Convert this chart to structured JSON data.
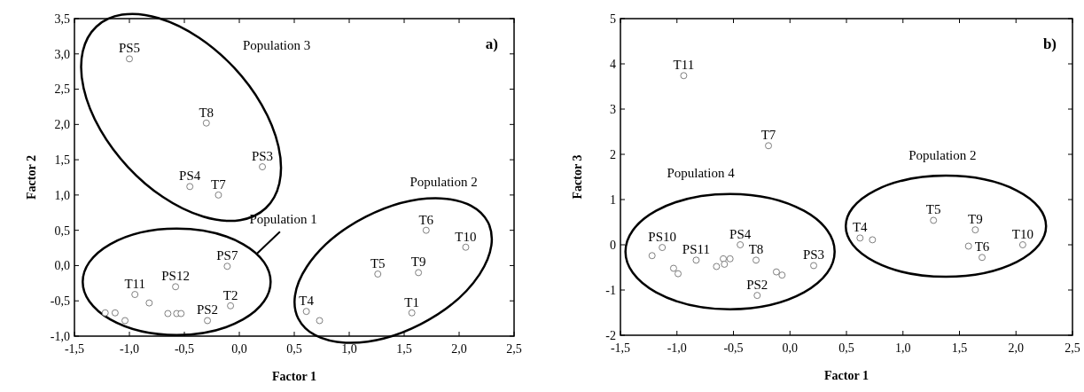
{
  "chart_data": [
    {
      "type": "scatter",
      "title": "a)",
      "xlabel": "Factor 1",
      "ylabel": "Factor 2",
      "marker": "circle",
      "grid": false,
      "xlim": [
        -1.5,
        2.5
      ],
      "ylim": [
        -1.0,
        3.5
      ],
      "xticks": [
        {
          "value": -1.5,
          "label": "-1,5"
        },
        {
          "value": -1.0,
          "label": "-1,0"
        },
        {
          "value": -0.5,
          "label": "-0,5"
        },
        {
          "value": 0,
          "label": "0,0"
        },
        {
          "value": 0.5,
          "label": "0,5"
        },
        {
          "value": 1.0,
          "label": "1,0"
        },
        {
          "value": 1.5,
          "label": "1,5"
        },
        {
          "value": 2.0,
          "label": "2,0"
        },
        {
          "value": 2.5,
          "label": "2,5"
        }
      ],
      "yticks": [
        {
          "value": -1.0,
          "label": "-1,0"
        },
        {
          "value": -0.5,
          "label": "-0,5"
        },
        {
          "value": 0,
          "label": "0,0"
        },
        {
          "value": 0.5,
          "label": "0,5"
        },
        {
          "value": 1.0,
          "label": "1,0"
        },
        {
          "value": 1.5,
          "label": "1,5"
        },
        {
          "value": 2.0,
          "label": "2,0"
        },
        {
          "value": 2.5,
          "label": "2,5"
        },
        {
          "value": 3.0,
          "label": "3,0"
        },
        {
          "value": 3.5,
          "label": "3,5"
        }
      ],
      "series": [
        {
          "color": "#7f7f7f",
          "x": [
            -1.0,
            -0.3,
            0.21,
            -0.45,
            -0.19,
            -0.95,
            -0.82,
            -1.22,
            -1.13,
            -1.04,
            -0.58,
            -0.65,
            -0.57,
            -0.53,
            -0.29,
            -0.11,
            -0.08,
            0.61,
            0.73,
            1.26,
            1.63,
            1.57,
            1.7,
            2.06
          ],
          "values": [
            2.93,
            2.02,
            1.4,
            1.12,
            1.0,
            -0.41,
            -0.53,
            -0.67,
            -0.67,
            -0.78,
            -0.3,
            -0.68,
            -0.68,
            -0.68,
            -0.78,
            -0.01,
            -0.57,
            -0.65,
            -0.78,
            -0.12,
            -0.1,
            -0.67,
            0.5,
            0.26
          ]
        }
      ],
      "annotations": [
        "Population 3",
        "Population 1",
        "Population 2",
        {
          "text": "PS5",
          "x": -1.0,
          "y": 2.93
        },
        {
          "text": "T8",
          "x": -0.3,
          "y": 2.02
        },
        {
          "text": "PS3",
          "x": 0.21,
          "y": 1.4
        },
        {
          "text": "PS4",
          "x": -0.45,
          "y": 1.12
        },
        {
          "text": "T7",
          "x": -0.19,
          "y": 1.0
        },
        {
          "text": "T11",
          "x": -0.95,
          "y": -0.41
        },
        {
          "text": "PS12",
          "x": -0.58,
          "y": -0.3
        },
        {
          "text": "PS2",
          "x": -0.29,
          "y": -0.78
        },
        {
          "text": "PS7",
          "x": -0.11,
          "y": -0.01
        },
        {
          "text": "T2",
          "x": -0.08,
          "y": -0.57
        },
        {
          "text": "T4",
          "x": 0.61,
          "y": -0.65
        },
        {
          "text": "T5",
          "x": 1.26,
          "y": -0.12
        },
        {
          "text": "T9",
          "x": 1.63,
          "y": -0.1
        },
        {
          "text": "T1",
          "x": 1.57,
          "y": -0.67
        },
        {
          "text": "T6",
          "x": 1.7,
          "y": 0.5
        },
        {
          "text": "T10",
          "x": 2.06,
          "y": 0.26
        }
      ]
    },
    {
      "type": "scatter",
      "title": "b)",
      "xlabel": "Factor 1",
      "ylabel": "Factor 3",
      "marker": "circle",
      "grid": false,
      "xlim": [
        -1.5,
        2.5
      ],
      "ylim": [
        -2,
        5
      ],
      "xticks": [
        {
          "value": -1.5,
          "label": "-1,5"
        },
        {
          "value": -1.0,
          "label": "-1,0"
        },
        {
          "value": -0.5,
          "label": "-0,5"
        },
        {
          "value": 0,
          "label": "0,0"
        },
        {
          "value": 0.5,
          "label": "0,5"
        },
        {
          "value": 1.0,
          "label": "1,0"
        },
        {
          "value": 1.5,
          "label": "1,5"
        },
        {
          "value": 2.0,
          "label": "2,0"
        },
        {
          "value": 2.5,
          "label": "2,5"
        }
      ],
      "yticks": [
        -2,
        -1,
        0,
        1,
        2,
        3,
        4,
        5
      ],
      "series": [
        {
          "color": "#7f7f7f",
          "x": [
            -0.94,
            -0.19,
            -1.22,
            -1.13,
            -1.03,
            -0.99,
            -0.83,
            -0.65,
            -0.59,
            -0.58,
            -0.53,
            -0.44,
            -0.3,
            -0.29,
            -0.12,
            -0.07,
            0.21,
            0.62,
            0.73,
            1.27,
            1.64,
            1.58,
            1.7,
            2.06
          ],
          "values": [
            3.74,
            2.19,
            -0.24,
            -0.06,
            -0.52,
            -0.64,
            -0.34,
            -0.48,
            -0.31,
            -0.43,
            -0.31,
            0.0,
            -0.34,
            -1.12,
            -0.6,
            -0.67,
            -0.46,
            0.15,
            0.11,
            0.54,
            0.33,
            -0.03,
            -0.28,
            0.0
          ]
        }
      ],
      "annotations": [
        "Population 4",
        "Population 2",
        {
          "text": "T11",
          "x": -0.94,
          "y": 3.74
        },
        {
          "text": "T7",
          "x": -0.19,
          "y": 2.19
        },
        {
          "text": "PS10",
          "x": -1.13,
          "y": -0.06
        },
        {
          "text": "PS11",
          "x": -0.83,
          "y": -0.34
        },
        {
          "text": "PS4",
          "x": -0.44,
          "y": 0.0
        },
        {
          "text": "T8",
          "x": -0.3,
          "y": -0.34
        },
        {
          "text": "PS2",
          "x": -0.29,
          "y": -1.12
        },
        {
          "text": "PS3",
          "x": 0.21,
          "y": -0.46
        },
        {
          "text": "T4",
          "x": 0.62,
          "y": 0.15
        },
        {
          "text": "T5",
          "x": 1.27,
          "y": 0.54
        },
        {
          "text": "T9",
          "x": 1.64,
          "y": 0.33
        },
        {
          "text": "T6",
          "x": 1.7,
          "y": -0.28
        },
        {
          "text": "T10",
          "x": 2.06,
          "y": 0.0
        }
      ]
    }
  ]
}
